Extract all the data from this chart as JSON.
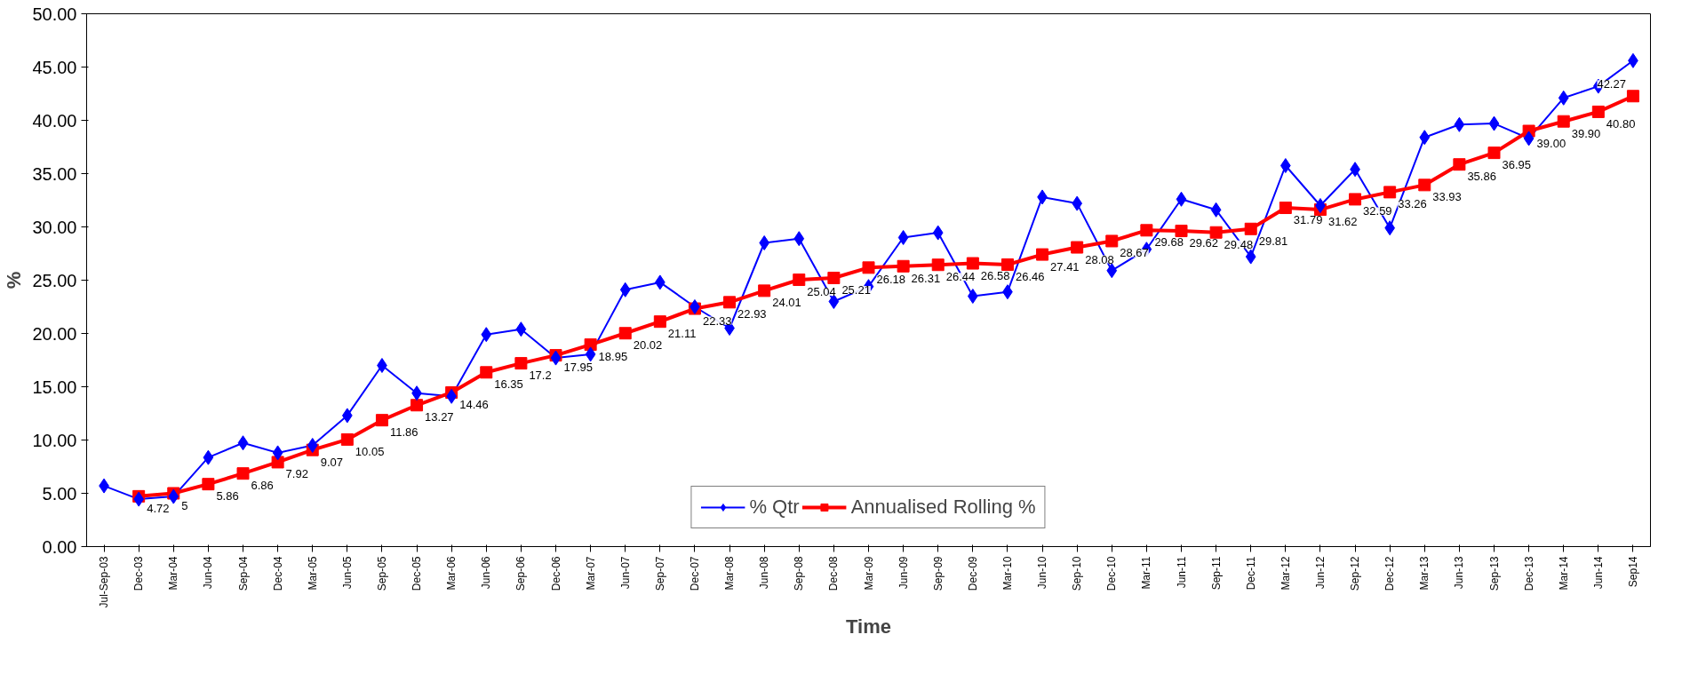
{
  "chart_data": {
    "type": "line",
    "xlabel": "Time",
    "ylabel": "%",
    "categories": [
      "Jul-Sep-03",
      "Dec-03",
      "Mar-04",
      "Jun-04",
      "Sep-04",
      "Dec-04",
      "Mar-05",
      "Jun-05",
      "Sep-05",
      "Dec-05",
      "Mar-06",
      "Jun-06",
      "Sep-06",
      "Dec-06",
      "Mar-07",
      "Jun-07",
      "Sep-07",
      "Dec-07",
      "Mar-08",
      "Jun-08",
      "Sep-08",
      "Dec-08",
      "Mar-09",
      "Jun-09",
      "Sep-09",
      "Dec-09",
      "Mar-10",
      "Jun-10",
      "Sep-10",
      "Dec-10",
      "Mar-11",
      "Jun-11",
      "Sep-11",
      "Dec-11",
      "Mar-12",
      "Jun-12",
      "Sep-12",
      "Dec-12",
      "Mar-13",
      "Jun-13",
      "Sep-13",
      "Dec-13",
      "Mar-14",
      "Jun-14",
      "Sep14"
    ],
    "series": [
      {
        "name": "% Qtr",
        "color": "#0000ff",
        "marker": "diamond",
        "values": [
          5.7,
          4.45,
          4.7,
          8.36,
          9.73,
          8.8,
          9.5,
          12.3,
          17.0,
          14.4,
          14.1,
          19.9,
          20.4,
          17.7,
          18.05,
          24.1,
          24.8,
          22.5,
          20.5,
          28.5,
          28.9,
          23.0,
          24.4,
          29.0,
          29.45,
          23.5,
          23.9,
          32.8,
          32.2,
          25.9,
          27.9,
          32.6,
          31.6,
          27.2,
          35.75,
          32.0,
          35.4,
          29.9,
          38.4,
          39.6,
          39.7,
          38.3,
          42.1,
          43.2,
          45.6
        ]
      },
      {
        "name": "Annualised Rolling %",
        "color": "#ff0000",
        "marker": "square",
        "values": [
          null,
          4.72,
          5,
          5.86,
          6.86,
          7.92,
          9.07,
          10.05,
          11.86,
          13.27,
          14.46,
          16.35,
          17.2,
          17.95,
          18.95,
          20.02,
          21.11,
          22.33,
          22.93,
          24.01,
          25.04,
          25.21,
          26.18,
          26.31,
          26.44,
          26.58,
          26.46,
          27.41,
          28.08,
          28.67,
          29.68,
          29.62,
          29.48,
          29.81,
          31.79,
          31.62,
          32.59,
          33.26,
          33.93,
          35.86,
          36.95,
          39.0,
          39.9,
          40.8,
          42.27
        ],
        "value_labels": [
          null,
          "4.72",
          "5",
          "5.86",
          "6.86",
          "7.92",
          "9.07",
          "10.05",
          "11.86",
          "13.27",
          "14.46",
          "16.35",
          "17.2",
          "17.95",
          "18.95",
          "20.02",
          "21.11",
          "22.33",
          "22.93",
          "24.01",
          "25.04",
          "25.21",
          "26.18",
          "26.31",
          "26.44",
          "26.58",
          "26.46",
          "27.41",
          "28.08",
          "28.67",
          "29.68",
          "29.62",
          "29.48",
          "29.81",
          "31.79",
          "31.62",
          "32.59",
          "33.26",
          "33.93",
          "35.86",
          "36.95",
          "39.00",
          "39.90",
          "40.80",
          "42.27"
        ]
      }
    ],
    "ylim": [
      0,
      50
    ],
    "yticks": [
      {
        "value": 0,
        "label": "0.00"
      },
      {
        "value": 5,
        "label": "5.00"
      },
      {
        "value": 10,
        "label": "10.00"
      },
      {
        "value": 15,
        "label": "15.00"
      },
      {
        "value": 20,
        "label": "20.00"
      },
      {
        "value": 25,
        "label": "25.00"
      },
      {
        "value": 30,
        "label": "30.00"
      },
      {
        "value": 35,
        "label": "35.00"
      },
      {
        "value": 40,
        "label": "40.00"
      },
      {
        "value": 45,
        "label": "45.00"
      },
      {
        "value": 50,
        "label": "50.00"
      }
    ],
    "grid": false,
    "legend": "bottom",
    "line_style": "solid"
  }
}
